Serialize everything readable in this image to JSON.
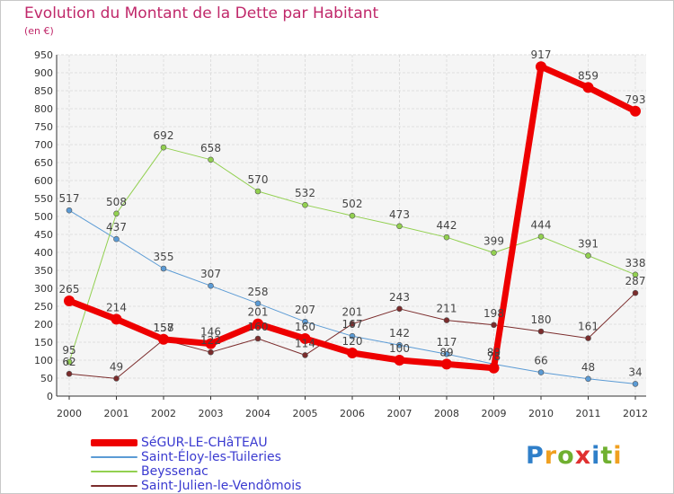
{
  "chart_data": {
    "type": "line",
    "title": "Evolution du Montant de la Dette par Habitant",
    "subtitle": "(en €)",
    "xlabel": "",
    "ylabel": "",
    "x": [
      "2000",
      "2001",
      "2002",
      "2003",
      "2004",
      "2005",
      "2006",
      "2007",
      "2008",
      "2009",
      "2010",
      "2011",
      "2012"
    ],
    "ylim": [
      0,
      950
    ],
    "yticks": [
      0,
      50,
      100,
      150,
      200,
      250,
      300,
      350,
      400,
      450,
      500,
      550,
      600,
      650,
      700,
      750,
      800,
      850,
      900,
      950
    ],
    "grid": true,
    "legend_position": "bottom-left",
    "series": [
      {
        "name": "SéGUR-LE-CHâTEAU",
        "color": "#ee0000",
        "values": [
          265,
          214,
          158,
          146,
          201,
          160,
          120,
          100,
          89,
          78,
          917,
          859,
          793
        ]
      },
      {
        "name": "Saint-Éloy-les-Tuileries",
        "color": "#5b9bd5",
        "values": [
          517,
          437,
          355,
          307,
          258,
          207,
          167,
          142,
          117,
          89,
          66,
          48,
          34
        ]
      },
      {
        "name": "Beyssenac",
        "color": "#92d050",
        "values": [
          95,
          508,
          692,
          658,
          570,
          532,
          502,
          473,
          442,
          399,
          444,
          391,
          338
        ]
      },
      {
        "name": "Saint-Julien-le-Vendômois",
        "color": "#7b2c2c",
        "values": [
          62,
          49,
          157,
          122,
          160,
          114,
          201,
          243,
          211,
          198,
          180,
          161,
          287
        ]
      }
    ]
  },
  "logo": {
    "text": "Proxiti",
    "letters": [
      "P",
      "r",
      "o",
      "x",
      "i",
      "t",
      "i"
    ],
    "colors": [
      "#2f7fc9",
      "#f0a020",
      "#70b030",
      "#e03030",
      "#2f7fc9",
      "#70b030",
      "#f0a020"
    ]
  }
}
